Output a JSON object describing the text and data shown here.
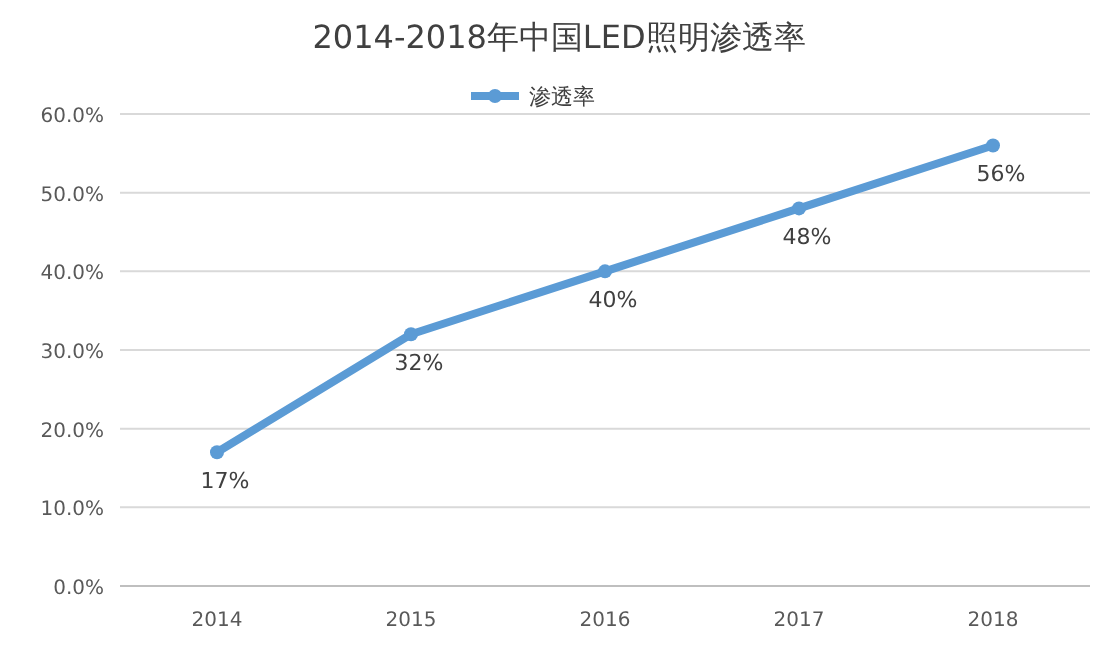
{
  "chart_data": {
    "type": "line",
    "title": "2014-2018年中国LED照明渗透率",
    "categories": [
      "2014",
      "2015",
      "2016",
      "2017",
      "2018"
    ],
    "series": [
      {
        "name": "渗透率",
        "color": "#5b9bd5",
        "values": [
          17,
          32,
          40,
          48,
          56
        ],
        "value_labels": [
          "17%",
          "32%",
          "40%",
          "48%",
          "56%"
        ]
      }
    ],
    "ylim": [
      0,
      60
    ],
    "yticks": [
      {
        "value": 0,
        "label": "0.0%"
      },
      {
        "value": 10,
        "label": "10.0%"
      },
      {
        "value": 20,
        "label": "20.0%"
      },
      {
        "value": 30,
        "label": "30.0%"
      },
      {
        "value": 40,
        "label": "40.0%"
      },
      {
        "value": 50,
        "label": "50.0%"
      },
      {
        "value": 60,
        "label": "60.0%"
      }
    ],
    "grid": "y",
    "legend": "top",
    "marker": "circle",
    "line_style": "solid"
  }
}
